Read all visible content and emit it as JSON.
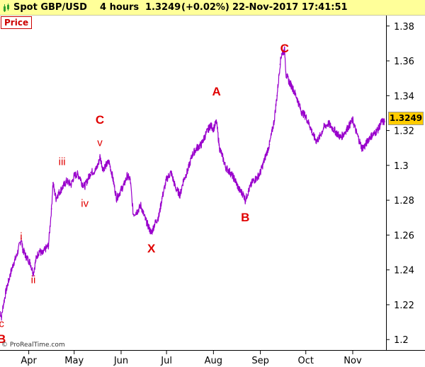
{
  "header": {
    "instrument": "Spot GBP/USD",
    "timeframe": "4 hours",
    "last_value": "1.3249",
    "change": "(+0.02%)",
    "datetime": "22-Nov-2017 17:41:51"
  },
  "panel_label": "Price",
  "copyright": "© ProRealTime.com",
  "last_price_box": "1.3249",
  "colors": {
    "series": "#9900cc",
    "labels": "#e00000",
    "header_bg": "#ffff99",
    "last_box": "#ffcc00"
  },
  "wave_labels": [
    {
      "text": "c",
      "date": "2017-03-14",
      "price": 1.209,
      "size": "small"
    },
    {
      "text": "B",
      "date": "2017-03-14",
      "price": 1.2,
      "size": "big"
    },
    {
      "text": "i",
      "date": "2017-03-27",
      "price": 1.259,
      "size": "small"
    },
    {
      "text": "ii",
      "date": "2017-04-04",
      "price": 1.234,
      "size": "small"
    },
    {
      "text": "iii",
      "date": "2017-04-23",
      "price": 1.302,
      "size": "small"
    },
    {
      "text": "iv",
      "date": "2017-05-08",
      "price": 1.278,
      "size": "small"
    },
    {
      "text": "v",
      "date": "2017-05-18",
      "price": 1.313,
      "size": "small"
    },
    {
      "text": "C",
      "date": "2017-05-18",
      "price": 1.326,
      "size": "big"
    },
    {
      "text": "X",
      "date": "2017-06-21",
      "price": 1.252,
      "size": "big"
    },
    {
      "text": "A",
      "date": "2017-08-03",
      "price": 1.342,
      "size": "big"
    },
    {
      "text": "B",
      "date": "2017-08-22",
      "price": 1.27,
      "size": "big"
    },
    {
      "text": "C",
      "date": "2017-09-17",
      "price": 1.367,
      "size": "big"
    }
  ],
  "chart_data": {
    "type": "line",
    "x_type": "date",
    "x_ticks": [
      {
        "label": "Apr",
        "date": "2017-04-01"
      },
      {
        "label": "May",
        "date": "2017-05-01"
      },
      {
        "label": "Jun",
        "date": "2017-06-01"
      },
      {
        "label": "Jul",
        "date": "2017-07-01"
      },
      {
        "label": "Aug",
        "date": "2017-08-01"
      },
      {
        "label": "Sep",
        "date": "2017-09-01"
      },
      {
        "label": "Oct",
        "date": "2017-10-01"
      },
      {
        "label": "Nov",
        "date": "2017-11-01"
      }
    ],
    "y_ticks": [
      "1.2",
      "1.22",
      "1.24",
      "1.26",
      "1.28",
      "1.3",
      "1.32",
      "1.34",
      "1.36",
      "1.38"
    ],
    "x_range": [
      "2017-03-13",
      "2017-11-23"
    ],
    "ylim": [
      1.194,
      1.386
    ],
    "grid": false,
    "series": [
      {
        "x": [
          "2017-03-13",
          "2017-03-14",
          "2017-03-15",
          "2017-03-17",
          "2017-03-20",
          "2017-03-22",
          "2017-03-24",
          "2017-03-27",
          "2017-03-28",
          "2017-03-30",
          "2017-04-02",
          "2017-04-04",
          "2017-04-06",
          "2017-04-08",
          "2017-04-10",
          "2017-04-12",
          "2017-04-14",
          "2017-04-16",
          "2017-04-17",
          "2017-04-18",
          "2017-04-19",
          "2017-04-20",
          "2017-04-23",
          "2017-04-26",
          "2017-04-29",
          "2017-05-01",
          "2017-05-03",
          "2017-05-05",
          "2017-05-06",
          "2017-05-08",
          "2017-05-10",
          "2017-05-12",
          "2017-05-15",
          "2017-05-17",
          "2017-05-18",
          "2017-05-20",
          "2017-05-22",
          "2017-05-24",
          "2017-05-26",
          "2017-05-29",
          "2017-06-01",
          "2017-06-03",
          "2017-06-05",
          "2017-06-07",
          "2017-06-09",
          "2017-06-12",
          "2017-06-14",
          "2017-06-17",
          "2017-06-19",
          "2017-06-21",
          "2017-06-23",
          "2017-06-26",
          "2017-06-28",
          "2017-07-01",
          "2017-07-04",
          "2017-07-07",
          "2017-07-10",
          "2017-07-12",
          "2017-07-15",
          "2017-07-18",
          "2017-07-21",
          "2017-07-24",
          "2017-07-27",
          "2017-07-30",
          "2017-08-01",
          "2017-08-03",
          "2017-08-05",
          "2017-08-07",
          "2017-08-09",
          "2017-08-12",
          "2017-08-15",
          "2017-08-18",
          "2017-08-21",
          "2017-08-22",
          "2017-08-24",
          "2017-08-27",
          "2017-08-30",
          "2017-09-01",
          "2017-09-04",
          "2017-09-07",
          "2017-09-10",
          "2017-09-12",
          "2017-09-14",
          "2017-09-15",
          "2017-09-17",
          "2017-09-18",
          "2017-09-20",
          "2017-09-22",
          "2017-09-25",
          "2017-09-28",
          "2017-10-01",
          "2017-10-04",
          "2017-10-06",
          "2017-10-08",
          "2017-10-10",
          "2017-10-13",
          "2017-10-16",
          "2017-10-19",
          "2017-10-22",
          "2017-10-24",
          "2017-10-26",
          "2017-10-29",
          "2017-11-01",
          "2017-11-03",
          "2017-11-05",
          "2017-11-07",
          "2017-11-09",
          "2017-11-12",
          "2017-11-15",
          "2017-11-18",
          "2017-11-20",
          "2017-11-22"
        ],
        "values": [
          1.216,
          1.213,
          1.219,
          1.228,
          1.238,
          1.244,
          1.248,
          1.258,
          1.252,
          1.248,
          1.244,
          1.238,
          1.247,
          1.251,
          1.249,
          1.252,
          1.254,
          1.275,
          1.29,
          1.285,
          1.281,
          1.283,
          1.287,
          1.291,
          1.289,
          1.294,
          1.295,
          1.293,
          1.29,
          1.288,
          1.292,
          1.296,
          1.297,
          1.301,
          1.305,
          1.298,
          1.3,
          1.302,
          1.295,
          1.281,
          1.286,
          1.289,
          1.294,
          1.292,
          1.272,
          1.274,
          1.277,
          1.269,
          1.265,
          1.261,
          1.266,
          1.271,
          1.281,
          1.292,
          1.296,
          1.287,
          1.283,
          1.291,
          1.297,
          1.306,
          1.31,
          1.312,
          1.318,
          1.323,
          1.321,
          1.325,
          1.31,
          1.305,
          1.299,
          1.296,
          1.292,
          1.286,
          1.283,
          1.28,
          1.285,
          1.291,
          1.293,
          1.296,
          1.304,
          1.312,
          1.325,
          1.34,
          1.358,
          1.364,
          1.366,
          1.352,
          1.348,
          1.345,
          1.339,
          1.331,
          1.328,
          1.322,
          1.317,
          1.314,
          1.316,
          1.322,
          1.324,
          1.321,
          1.318,
          1.316,
          1.318,
          1.322,
          1.326,
          1.32,
          1.315,
          1.31,
          1.311,
          1.316,
          1.318,
          1.321,
          1.325,
          1.325
        ]
      }
    ]
  }
}
